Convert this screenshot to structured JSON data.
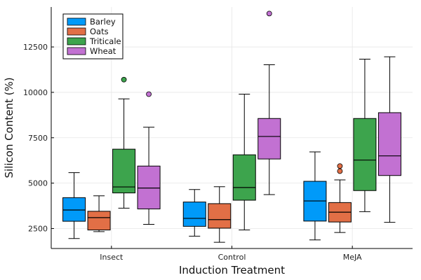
{
  "chart_data": {
    "type": "box",
    "title": "",
    "xlabel": "Induction Treatment",
    "ylabel": "Silicon Content (%)",
    "ylim": [
      1400,
      14700
    ],
    "yticks": [
      2500,
      5000,
      7500,
      10000,
      12500
    ],
    "ytick_labels": [
      "2500",
      "5000",
      "7500",
      "10000",
      "12500"
    ],
    "grid": true,
    "legend_position": "top-left",
    "categories": [
      "Insect",
      "Control",
      "MeJA"
    ],
    "series": [
      {
        "name": "Barley",
        "color": "#009af9",
        "boxes": [
          {
            "min": 1950,
            "q1": 2900,
            "median": 3520,
            "q3": 4200,
            "max": 5580,
            "outliers": []
          },
          {
            "min": 2080,
            "q1": 2620,
            "median": 3060,
            "q3": 3960,
            "max": 4650,
            "outliers": []
          },
          {
            "min": 1870,
            "q1": 2910,
            "median": 4020,
            "q3": 5100,
            "max": 6720,
            "outliers": []
          }
        ]
      },
      {
        "name": "Oats",
        "color": "#e26f46",
        "boxes": [
          {
            "min": 2330,
            "q1": 2420,
            "median": 3100,
            "q3": 3450,
            "max": 4300,
            "outliers": []
          },
          {
            "min": 1740,
            "q1": 2520,
            "median": 2990,
            "q3": 3870,
            "max": 4800,
            "outliers": []
          },
          {
            "min": 2280,
            "q1": 2860,
            "median": 3400,
            "q3": 3930,
            "max": 5180,
            "outliers": [
              5660,
              5940
            ]
          }
        ]
      },
      {
        "name": "Triticale",
        "color": "#3da44d",
        "boxes": [
          {
            "min": 3620,
            "q1": 4460,
            "median": 4790,
            "q3": 6870,
            "max": 9640,
            "outliers": [
              10700
            ]
          },
          {
            "min": 2420,
            "q1": 4060,
            "median": 4760,
            "q3": 6560,
            "max": 9900,
            "outliers": []
          },
          {
            "min": 3430,
            "q1": 4590,
            "median": 6270,
            "q3": 8560,
            "max": 11830,
            "outliers": []
          }
        ]
      },
      {
        "name": "Wheat",
        "color": "#c271d2",
        "boxes": [
          {
            "min": 2730,
            "q1": 3580,
            "median": 4730,
            "q3": 5940,
            "max": 8080,
            "outliers": [
              9900
            ]
          },
          {
            "min": 4370,
            "q1": 6330,
            "median": 7570,
            "q3": 8560,
            "max": 11520,
            "outliers": [
              14340
            ]
          },
          {
            "min": 2840,
            "q1": 5420,
            "median": 6500,
            "q3": 8880,
            "max": 11960,
            "outliers": []
          }
        ]
      }
    ]
  }
}
